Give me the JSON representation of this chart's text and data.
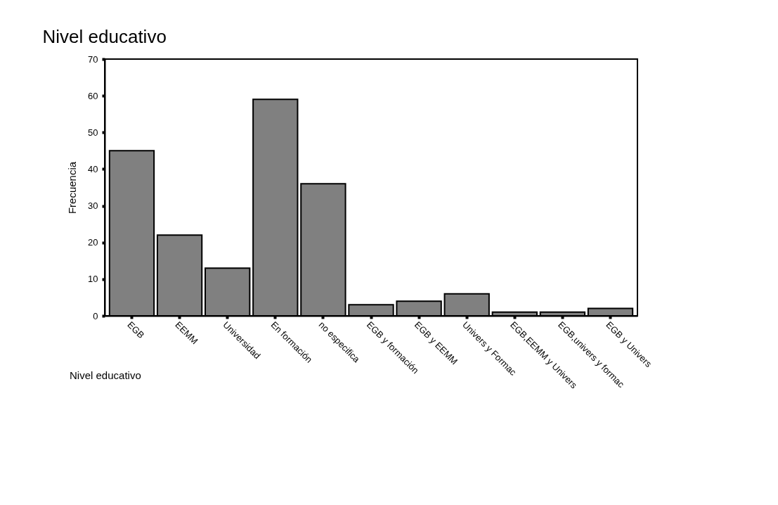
{
  "chart_data": {
    "type": "bar",
    "title": "Nivel educativo",
    "annotations": [
      "Nivel educativo"
    ],
    "ylabel": "Frecuencia",
    "categories": [
      "EGB",
      "EEMM",
      "Universidad",
      "En formación",
      "no especifica",
      "EGB y formación",
      "EGB y EEMM",
      "Univers y Formac",
      "EGB,EEMM y Univers",
      "EGB,univers y formac",
      "EGB y Univers"
    ],
    "values": [
      45,
      22,
      13,
      59,
      36,
      3,
      4,
      6,
      1,
      1,
      2
    ],
    "color": "#808080",
    "ylim": [
      0,
      70
    ],
    "yticks": [
      0,
      10,
      20,
      30,
      40,
      50,
      60,
      70
    ],
    "grid": false
  }
}
